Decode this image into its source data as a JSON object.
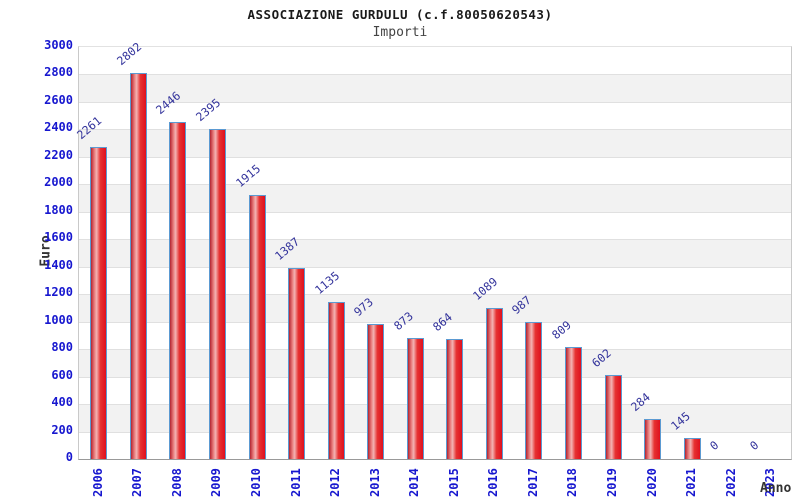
{
  "chart_data": {
    "type": "bar",
    "title": "ASSOCIAZIONE GURDULU (c.f.80050620543)",
    "subtitle": "Importi",
    "xlabel": "Anno",
    "ylabel": "Euro",
    "categories": [
      "2006",
      "2007",
      "2008",
      "2009",
      "2010",
      "2011",
      "2012",
      "2013",
      "2014",
      "2015",
      "2016",
      "2017",
      "2018",
      "2019",
      "2020",
      "2021",
      "2022",
      "2023"
    ],
    "values": [
      2261,
      2802,
      2446,
      2395,
      1915,
      1387,
      1135,
      973,
      873,
      864,
      1089,
      987,
      809,
      602,
      284,
      145,
      0,
      0
    ],
    "ylim": [
      0,
      3000
    ],
    "ytick_step": 200,
    "yticks": [
      0,
      200,
      400,
      600,
      800,
      1000,
      1200,
      1400,
      1600,
      1800,
      2000,
      2200,
      2400,
      2600,
      2800,
      3000
    ],
    "grid": "horizontal-bands",
    "legend": "none",
    "colors": {
      "tick_label": "#1717cf",
      "value_label": "#32329b",
      "bar_border": "#5b9ad2",
      "bar_gradient": [
        "#b32430",
        "#e87a7a",
        "#f3b4b4",
        "#e63232",
        "#df101e"
      ],
      "band_light": "#ffffff",
      "band_dark": "#f2f2f2",
      "gridline": "#e0e0e0",
      "axis_title": "#333333"
    }
  }
}
